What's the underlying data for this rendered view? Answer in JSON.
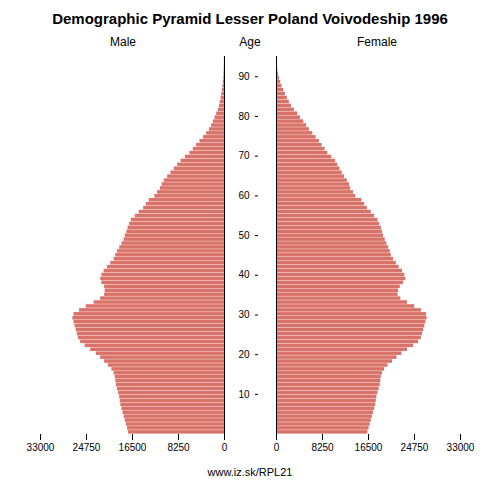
{
  "chart_data": {
    "type": "bar",
    "orientation": "horizontal",
    "title": "Demographic Pyramid Lesser Poland Voivodeship 1996",
    "footer": "www.iz.sk/RPL21",
    "ylabel": "Age",
    "color": "#d9736a",
    "xlim": [
      0,
      33000
    ],
    "xticks": [
      0,
      8250,
      16500,
      24750,
      33000
    ],
    "yticks": [
      10,
      20,
      30,
      40,
      50,
      60,
      70,
      80,
      90
    ],
    "categories": [
      0,
      1,
      2,
      3,
      4,
      5,
      6,
      7,
      8,
      9,
      10,
      11,
      12,
      13,
      14,
      15,
      16,
      17,
      18,
      19,
      20,
      21,
      22,
      23,
      24,
      25,
      26,
      27,
      28,
      29,
      30,
      31,
      32,
      33,
      34,
      35,
      36,
      37,
      38,
      39,
      40,
      41,
      42,
      43,
      44,
      45,
      46,
      47,
      48,
      49,
      50,
      51,
      52,
      53,
      54,
      55,
      56,
      57,
      58,
      59,
      60,
      61,
      62,
      63,
      64,
      65,
      66,
      67,
      68,
      69,
      70,
      71,
      72,
      73,
      74,
      75,
      76,
      77,
      78,
      79,
      80,
      81,
      82,
      83,
      84,
      85,
      86,
      87,
      88,
      89,
      90,
      91,
      92,
      93,
      94,
      95
    ],
    "series": [
      {
        "name": "Male",
        "values": [
          17200,
          17400,
          17600,
          17800,
          18000,
          18200,
          18400,
          18600,
          18700,
          18800,
          19000,
          19200,
          19400,
          19500,
          19600,
          19800,
          20200,
          20800,
          21500,
          22200,
          23000,
          24000,
          25000,
          25800,
          26200,
          26400,
          26600,
          26800,
          27000,
          27200,
          27000,
          26000,
          24800,
          23400,
          22200,
          21500,
          21400,
          21500,
          22000,
          22200,
          22000,
          21600,
          21000,
          20400,
          19800,
          19500,
          19200,
          18800,
          18400,
          18000,
          17800,
          17500,
          17300,
          17000,
          16700,
          16000,
          15300,
          14500,
          14000,
          13500,
          12500,
          12000,
          11500,
          11200,
          10800,
          10200,
          9600,
          9000,
          8400,
          7800,
          7000,
          6200,
          5600,
          5000,
          4400,
          3800,
          3200,
          2700,
          2300,
          2000,
          1700,
          1400,
          1100,
          900,
          750,
          600,
          490,
          380,
          290,
          210,
          150,
          110,
          75,
          50,
          30,
          20
        ]
      },
      {
        "name": "Female",
        "values": [
          16400,
          16600,
          16800,
          17000,
          17200,
          17400,
          17600,
          17800,
          17900,
          18000,
          18200,
          18400,
          18600,
          18700,
          18800,
          19000,
          19400,
          20000,
          20800,
          21600,
          22500,
          23500,
          24600,
          25500,
          26000,
          26200,
          26400,
          26600,
          26800,
          27000,
          26900,
          26000,
          24800,
          23500,
          22300,
          21800,
          21900,
          22200,
          22800,
          23200,
          23000,
          22600,
          22000,
          21500,
          21000,
          20600,
          20400,
          20100,
          19800,
          19500,
          19200,
          19000,
          18800,
          18500,
          18200,
          17600,
          17000,
          16300,
          15800,
          15300,
          14200,
          13800,
          13300,
          13100,
          12700,
          12200,
          11800,
          11400,
          11000,
          10600,
          9900,
          9200,
          8700,
          8200,
          7700,
          7100,
          6500,
          5900,
          5400,
          4900,
          4300,
          3800,
          3200,
          2700,
          2300,
          1950,
          1600,
          1300,
          1000,
          750,
          530,
          380,
          260,
          180,
          110,
          70
        ]
      }
    ]
  }
}
